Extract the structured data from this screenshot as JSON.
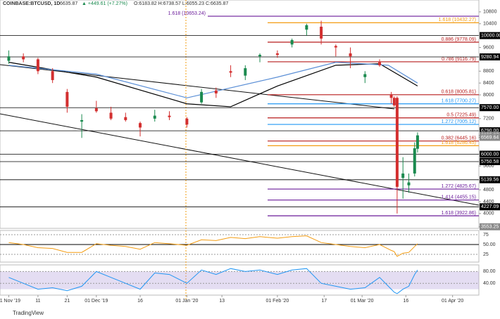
{
  "chart_data": {
    "type": "candlestick",
    "header": {
      "symbol": "COINBASE:BTCUSD, 1D",
      "price": "6635.87",
      "change": "▲ +449.61 (+7.27%)",
      "ohlc": "O:6183.82 H:6738.57 L:6055.23 C:6635.87"
    },
    "brand": "TradingView",
    "x": [
      0,
      5,
      10,
      15,
      20,
      25,
      30,
      35,
      40,
      45,
      50,
      55,
      61,
      66,
      71,
      76,
      81,
      86,
      92,
      97,
      102,
      107,
      112,
      117,
      122,
      127,
      131,
      132,
      133,
      135,
      137,
      139,
      140
    ],
    "open": [
      9150,
      9300,
      9200,
      8800,
      8100,
      7100,
      7550,
      7400,
      7250,
      7050,
      7200,
      7300,
      7200,
      7750,
      8150,
      8800,
      8650,
      9300,
      9400,
      9700,
      10200,
      10300,
      9650,
      9400,
      8600,
      9100,
      8000,
      7900,
      7900,
      5200,
      4950,
      5350,
      6183.82
    ],
    "high": [
      9500,
      9400,
      9250,
      8900,
      8200,
      7350,
      7800,
      7600,
      7400,
      7100,
      7500,
      7450,
      7250,
      8200,
      8250,
      9000,
      9000,
      9400,
      9500,
      9900,
      10400,
      10500,
      9700,
      9600,
      8800,
      9200,
      8100,
      7950,
      7950,
      5900,
      5350,
      6400,
      6738.57
    ],
    "low": [
      9050,
      9100,
      8700,
      8400,
      7400,
      6550,
      7400,
      7150,
      7100,
      6600,
      7100,
      7150,
      6900,
      7700,
      7900,
      8600,
      8500,
      9100,
      9250,
      9600,
      10000,
      9700,
      9300,
      8900,
      8400,
      8950,
      7700,
      7600,
      4000,
      4500,
      4700,
      5250,
      6055.23
    ],
    "close": [
      9300,
      9200,
      8800,
      8500,
      7600,
      7150,
      7450,
      7200,
      7150,
      6900,
      7300,
      7250,
      7000,
      8100,
      8050,
      8750,
      8900,
      9350,
      9350,
      9850,
      10350,
      9900,
      9600,
      9300,
      8700,
      9000,
      7900,
      7650,
      4900,
      5350,
      5050,
      6200,
      6635.87
    ],
    "up_color": "#1b8a4f",
    "down_color": "#d32f2f",
    "moving_averages": [
      {
        "color": "#000000",
        "x": [
          0,
          30,
          61,
          76,
          92,
          112,
          127,
          140
        ],
        "values": [
          9100,
          8600,
          7700,
          7600,
          8300,
          9000,
          9050,
          8300
        ]
      },
      {
        "color": "#5b8fd6",
        "x": [
          0,
          30,
          61,
          92,
          112,
          130,
          140
        ],
        "values": [
          9000,
          8700,
          7900,
          8600,
          9100,
          9000,
          8400
        ]
      }
    ],
    "xlim": [
      -3,
      161
    ],
    "xticks": [
      {
        "value": 0,
        "label": "01 Nov '19"
      },
      {
        "value": 10,
        "label": "11"
      },
      {
        "value": 20,
        "label": "21"
      },
      {
        "value": 30,
        "label": "01 Dec '19"
      },
      {
        "value": 45,
        "label": "16"
      },
      {
        "value": 61,
        "label": "01 Jan '20"
      },
      {
        "value": 73,
        "label": "13"
      },
      {
        "value": 92,
        "label": "01 Feb '20"
      },
      {
        "value": 108,
        "label": "17"
      },
      {
        "value": 121,
        "label": "01 Mar '20"
      },
      {
        "value": 136,
        "label": "16"
      },
      {
        "value": 152,
        "label": "01 Apr '20"
      }
    ],
    "ylim": [
      3500,
      11200
    ],
    "yticks": [
      10800,
      10400,
      9600,
      8800,
      8400,
      8000,
      7200,
      5600,
      4800,
      4400,
      4000
    ],
    "levels": [
      {
        "label": "1.618 (10653.24)",
        "value": 10653.24,
        "color": "#6a1b9a"
      },
      {
        "label": "1.618 (10432.27)",
        "value": 10432.27,
        "color": "#f39c12"
      },
      {
        "label": "0.886 (9778.09)",
        "value": 9778.09,
        "color": "#b71c1c"
      },
      {
        "label": "0.786 (9116.79)",
        "value": 9116.79,
        "color": "#b71c1c"
      },
      {
        "label": "0.618 (8005.81)",
        "value": 8005.81,
        "color": "#b71c1c"
      },
      {
        "label": "1.618 (7700.27)",
        "value": 7700.27,
        "color": "#2196f3"
      },
      {
        "label": "0.5 (7225.49)",
        "value": 7225.49,
        "color": "#b71c1c"
      },
      {
        "label": "1.272 (7005.12)",
        "value": 7005.12,
        "color": "#2196f3"
      },
      {
        "label": "0.382 (6445.16)",
        "value": 6445.16,
        "color": "#b71c1c"
      },
      {
        "label": "1.618 (6286.45)",
        "value": 6286.45,
        "color": "#f39c12"
      },
      {
        "label": "1.272 (4825.67)",
        "value": 4825.67,
        "color": "#6a1b9a"
      },
      {
        "label": "1.414 (4455.15)",
        "value": 4455.15,
        "color": "#6a1b9a"
      },
      {
        "label": "1.618 (3922.86)",
        "value": 3922.86,
        "color": "#6a1b9a"
      }
    ],
    "axis_levels": [
      {
        "value": 10000,
        "label": "10000.00",
        "color": "#000000"
      },
      {
        "value": 9280.94,
        "label": "9280.94",
        "color": "#000000"
      },
      {
        "value": 7570,
        "label": "7570.00",
        "color": "#000000"
      },
      {
        "value": 6790,
        "label": "6790.00",
        "color": "#000000"
      },
      {
        "value": 6635.87,
        "label": "6635.87",
        "color": "#8a8a8a"
      },
      {
        "value": 6569.64,
        "label": "6569.64",
        "color": "#8a8a8a"
      },
      {
        "value": 6000,
        "label": "6000.00",
        "color": "#000000"
      },
      {
        "value": 5750.58,
        "label": "5750.58",
        "color": "#000000"
      },
      {
        "value": 5139.56,
        "label": "5139.56",
        "color": "#000000"
      },
      {
        "value": 4227.09,
        "label": "4227.09",
        "color": "#000000"
      },
      {
        "value": 3553.25,
        "label": "3553.25",
        "color": "#8a8a8a"
      }
    ],
    "rsi": {
      "color": "#f39c12",
      "ylim": [
        0,
        100
      ],
      "yticks": [
        75,
        {
          "value": 50,
          "label": "50.00"
        },
        25
      ],
      "values": [
        55,
        50,
        42,
        40,
        30,
        30,
        52,
        48,
        45,
        38,
        55,
        52,
        48,
        62,
        60,
        68,
        65,
        70,
        66,
        70,
        72,
        55,
        50,
        45,
        42,
        50,
        35,
        32,
        20,
        28,
        30,
        45,
        52
      ]
    },
    "stoch": {
      "color": "#2196f3",
      "ylim": [
        0,
        100
      ],
      "yticks": [
        {
          "value": 80,
          "label": "80.00"
        },
        {
          "value": 40,
          "label": "40.00"
        }
      ],
      "values": [
        60,
        40,
        20,
        25,
        15,
        30,
        80,
        60,
        40,
        20,
        75,
        70,
        40,
        85,
        70,
        90,
        80,
        85,
        70,
        85,
        90,
        40,
        30,
        20,
        25,
        60,
        20,
        10,
        5,
        20,
        30,
        70,
        85
      ]
    }
  }
}
